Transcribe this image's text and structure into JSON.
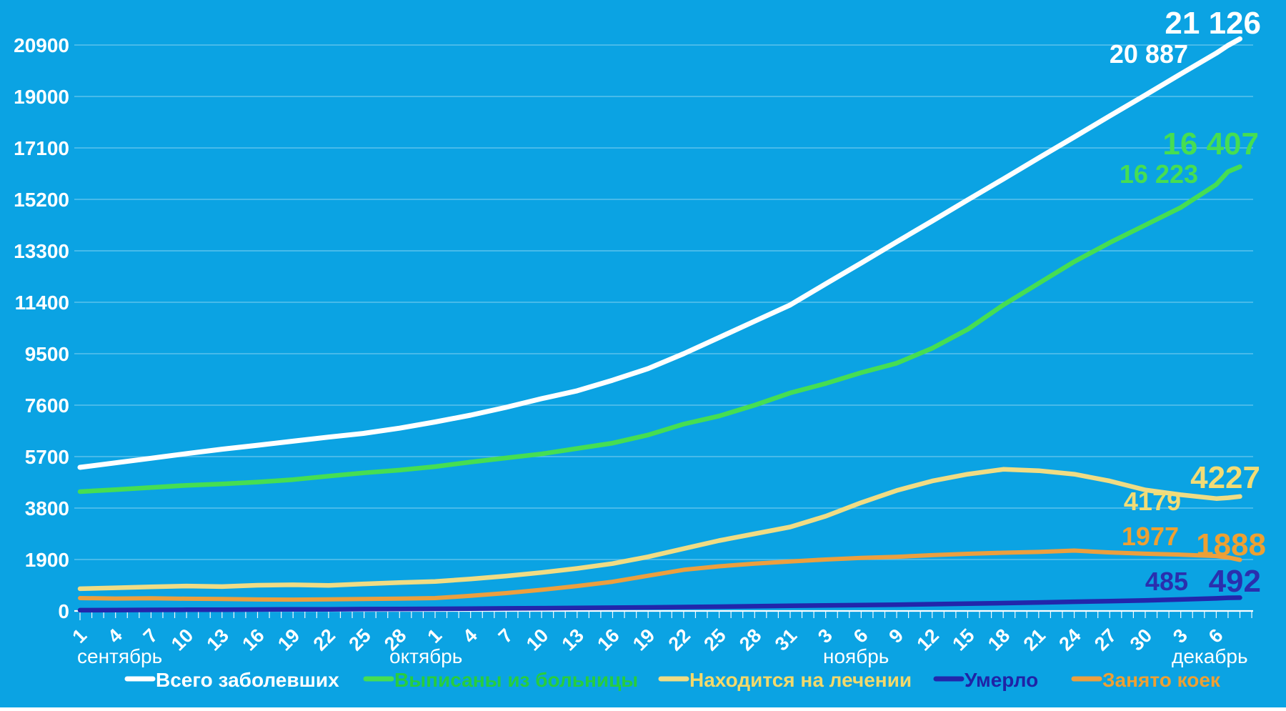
{
  "chart_data": {
    "type": "line",
    "background_color": "#0ba3e3",
    "grid_color": "rgba(255,255,255,0.33)",
    "axis_color": "#ffffff",
    "ylim": [
      0,
      20900
    ],
    "y_ticks": [
      0,
      1900,
      3800,
      5700,
      7600,
      9500,
      11400,
      13300,
      15200,
      17100,
      19000,
      20900
    ],
    "y_tick_labels": [
      "0",
      "1900",
      "3800",
      "5700",
      "7600",
      "9500",
      "11400",
      "13300",
      "15200",
      "17100",
      "19000",
      "20900"
    ],
    "x_tick_step_days": 3,
    "x_tick_labels": [
      "1",
      "4",
      "7",
      "10",
      "13",
      "16",
      "19",
      "22",
      "25",
      "28",
      "1",
      "4",
      "7",
      "10",
      "13",
      "16",
      "19",
      "22",
      "25",
      "28",
      "31",
      "3",
      "6",
      "9",
      "12",
      "15",
      "18",
      "21",
      "24",
      "27",
      "30",
      "3",
      "6"
    ],
    "months": [
      {
        "label": "сентябрь"
      },
      {
        "label": "октябрь"
      },
      {
        "label": "ноябрь"
      },
      {
        "label": "декабрь"
      }
    ],
    "series": [
      {
        "name": "Всего заболевших",
        "color": "#ffffff",
        "legend_color": "#ffffff",
        "label_color": "#ffffff",
        "final_label": "21 126",
        "prev_label": "20 887",
        "values_every_3_days": [
          5305,
          5470,
          5640,
          5810,
          5975,
          6120,
          6270,
          6420,
          6560,
          6750,
          6980,
          7230,
          7520,
          7840,
          8130,
          8520,
          8950,
          9500,
          10100,
          10700,
          11300,
          12080,
          12850,
          13630,
          14400,
          15180,
          15950,
          16730,
          17500,
          18280,
          19050,
          19830,
          20600
        ],
        "last_two_days": [
          20887,
          21126
        ]
      },
      {
        "name": "Выписаны из больницы",
        "color": "#46de52",
        "legend_color": "#27cd3e",
        "label_color": "#46de52",
        "final_label": "16 407",
        "prev_label": "16 223",
        "values_every_3_days": [
          4407,
          4480,
          4560,
          4640,
          4690,
          4760,
          4850,
          4980,
          5100,
          5200,
          5330,
          5500,
          5650,
          5800,
          6000,
          6200,
          6500,
          6900,
          7200,
          7600,
          8050,
          8400,
          8800,
          9150,
          9700,
          10400,
          11300,
          12100,
          12900,
          13600,
          14250,
          14900,
          15750
        ],
        "last_two_days": [
          16223,
          16407
        ]
      },
      {
        "name": "Находится на лечении",
        "color": "#f0dc84",
        "legend_color": "#f2d96b",
        "label_color": "#f2dc75",
        "final_label": "4227",
        "prev_label": "4179",
        "values_every_3_days": [
          820,
          855,
          890,
          920,
          900,
          950,
          965,
          945,
          1000,
          1050,
          1090,
          1180,
          1290,
          1420,
          1570,
          1750,
          2000,
          2300,
          2600,
          2850,
          3100,
          3500,
          4000,
          4450,
          4800,
          5050,
          5230,
          5180,
          5050,
          4800,
          4470,
          4290,
          4150
        ],
        "last_two_days": [
          4179,
          4227
        ]
      },
      {
        "name": "Умерло",
        "color": "#2226ab",
        "legend_color": "#1f23a6",
        "label_color": "#2a2fae",
        "final_label": "492",
        "prev_label": "485",
        "values_every_3_days": [
          30,
          35,
          40,
          44,
          48,
          52,
          57,
          62,
          68,
          74,
          80,
          87,
          95,
          103,
          112,
          122,
          133,
          145,
          158,
          173,
          190,
          205,
          218,
          232,
          250,
          268,
          290,
          315,
          340,
          365,
          390,
          425,
          465
        ],
        "last_two_days": [
          485,
          492
        ]
      },
      {
        "name": "Занято коек",
        "color": "#ec9f3e",
        "legend_color": "#eda033",
        "label_color": "#eda033",
        "final_label": "1888",
        "prev_label": "1977",
        "values_every_3_days": [
          475,
          460,
          470,
          450,
          440,
          425,
          420,
          430,
          440,
          455,
          475,
          560,
          660,
          780,
          920,
          1080,
          1300,
          1520,
          1650,
          1750,
          1830,
          1900,
          1960,
          2000,
          2060,
          2110,
          2150,
          2180,
          2230,
          2160,
          2115,
          2080,
          2030
        ],
        "last_two_days": [
          1977,
          1888
        ]
      }
    ]
  }
}
